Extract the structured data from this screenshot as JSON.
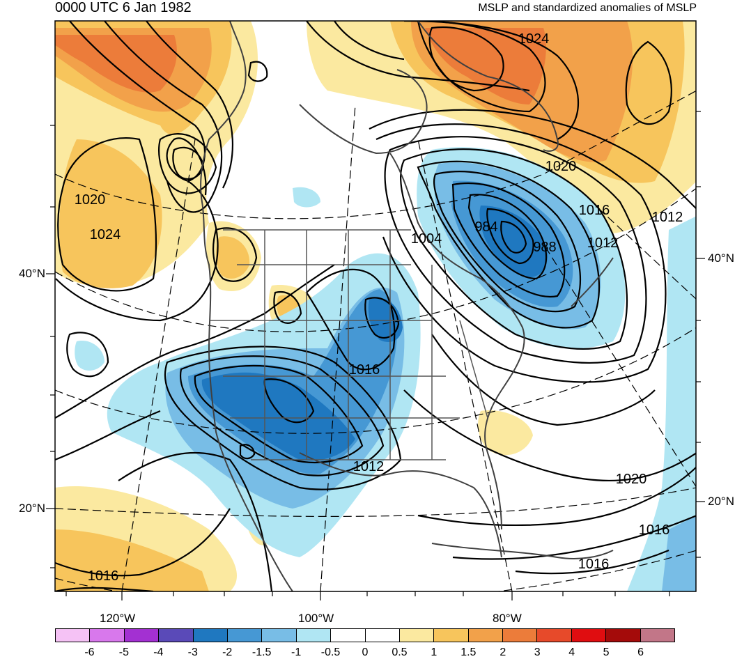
{
  "title": {
    "left": "0000 UTC 6 Jan 1982",
    "right": "MSLP and standardized anomalies of MSLP"
  },
  "lat_labels": {
    "n40_left": "40°N",
    "n20_left": "20°N",
    "n40_right": "40°N",
    "n20_right": "20°N"
  },
  "lon_labels": {
    "w120": "120°W",
    "w100": "100°W",
    "w80": "80°W"
  },
  "contour_labels": [
    "1024",
    "1020",
    "1016",
    "1012",
    "1020",
    "1024",
    "984",
    "988",
    "1004",
    "1012",
    "1016",
    "1012",
    "1020",
    "1016",
    "1016",
    "1016"
  ],
  "colorbar": {
    "colors": [
      "#f5c2f5",
      "#d878ec",
      "#a330d2",
      "#5a4ab8",
      "#1f78c0",
      "#4698d4",
      "#78bde6",
      "#b0e6f3",
      "#ffffff",
      "#ffffff",
      "#fbe9a0",
      "#f7c55c",
      "#f2a14a",
      "#ec7c3a",
      "#e74a2a",
      "#e00d10",
      "#a40b0a",
      "#c27688"
    ],
    "labels": [
      "-6",
      "-5",
      "-4",
      "-3",
      "-2",
      "-1.5",
      "-1",
      "-0.5",
      "0",
      "0.5",
      "1",
      "1.5",
      "2",
      "3",
      "4",
      "5",
      "6"
    ]
  },
  "chart_data": {
    "type": "map",
    "title": "MSLP and standardized anomalies of MSLP",
    "time": "0000 UTC 6 Jan 1982",
    "contour_variable": "MSLP (hPa)",
    "contour_levels_labeled": [
      984,
      988,
      1004,
      1012,
      1016,
      1020,
      1024
    ],
    "shading_variable": "standardized anomalies of MSLP",
    "shading_levels": [
      -6,
      -5,
      -4,
      -3,
      -2,
      -1.5,
      -1,
      -0.5,
      0,
      0.5,
      1,
      1.5,
      2,
      3,
      4,
      5,
      6
    ],
    "lat_ticks": [
      "20°N",
      "40°N"
    ],
    "lon_ticks": [
      "120°W",
      "100°W",
      "80°W"
    ]
  }
}
